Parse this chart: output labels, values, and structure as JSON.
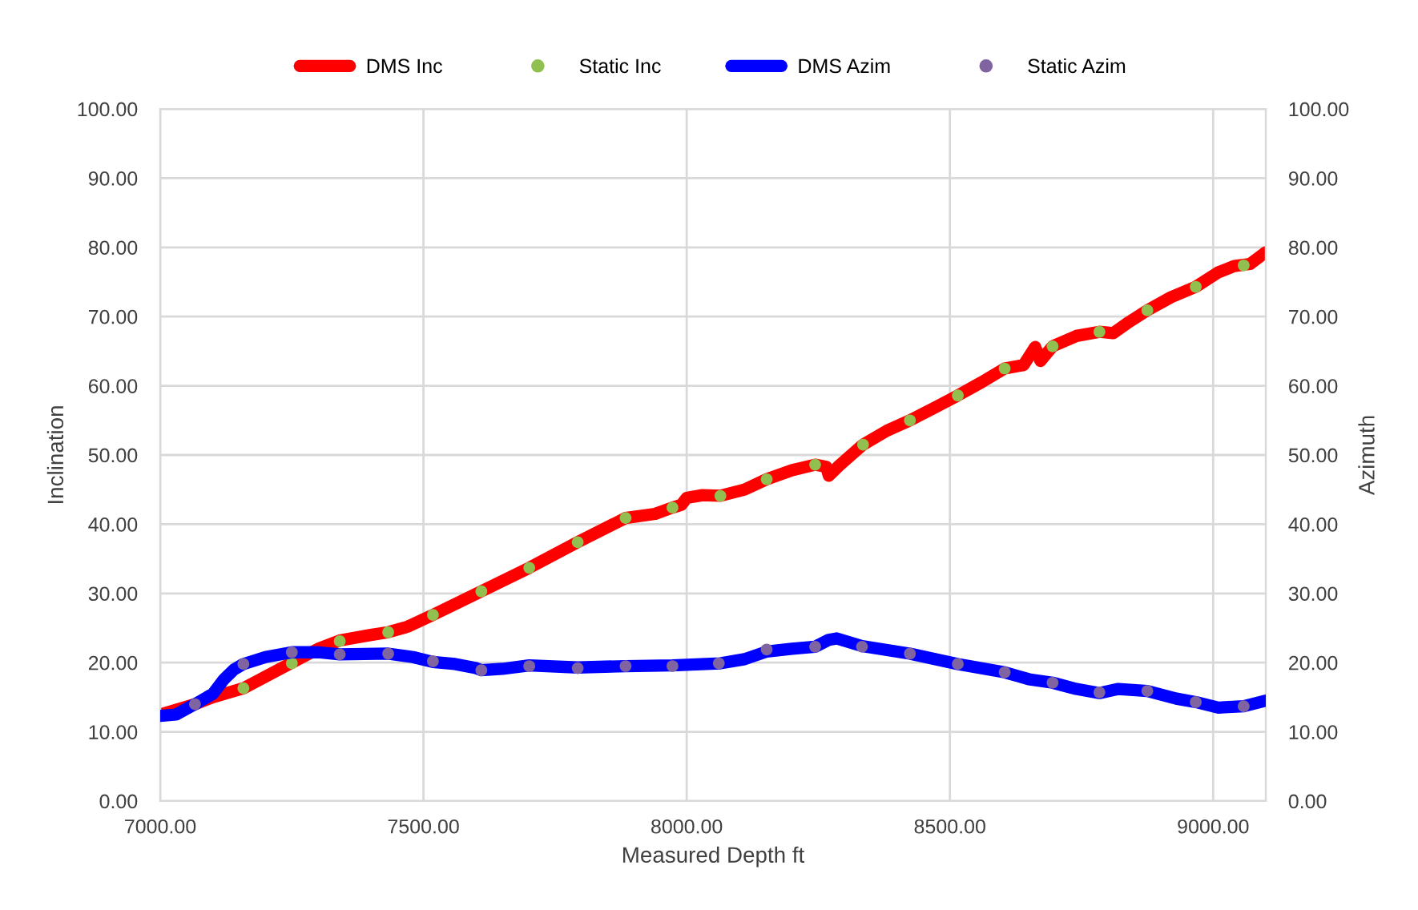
{
  "chart_data": {
    "type": "line",
    "xlabel": "Measured Depth ft",
    "ylabel": "Inclination",
    "y2label": "Azimuth",
    "xlim": [
      7000,
      9100
    ],
    "xticks": [
      {
        "value": 7000,
        "label": "7000.00"
      },
      {
        "value": 7500,
        "label": "7500.00"
      },
      {
        "value": 8000,
        "label": "8000.00"
      },
      {
        "value": 8500,
        "label": "8500.00"
      },
      {
        "value": 9000,
        "label": "9000.00"
      }
    ],
    "ylim": [
      0,
      100
    ],
    "yticks": [
      {
        "value": 0,
        "label": "0.00"
      },
      {
        "value": 10,
        "label": "10.00"
      },
      {
        "value": 20,
        "label": "20.00"
      },
      {
        "value": 30,
        "label": "30.00"
      },
      {
        "value": 40,
        "label": "40.00"
      },
      {
        "value": 50,
        "label": "50.00"
      },
      {
        "value": 60,
        "label": "60.00"
      },
      {
        "value": 70,
        "label": "70.00"
      },
      {
        "value": 80,
        "label": "80.00"
      },
      {
        "value": 90,
        "label": "90.00"
      },
      {
        "value": 100,
        "label": "100.00"
      }
    ],
    "y2lim": [
      0,
      100
    ],
    "y2ticks": [
      {
        "value": 0,
        "label": "0.00"
      },
      {
        "value": 10,
        "label": "10.00"
      },
      {
        "value": 20,
        "label": "20.00"
      },
      {
        "value": 30,
        "label": "30.00"
      },
      {
        "value": 40,
        "label": "40.00"
      },
      {
        "value": 50,
        "label": "50.00"
      },
      {
        "value": 60,
        "label": "60.00"
      },
      {
        "value": 70,
        "label": "70.00"
      },
      {
        "value": 80,
        "label": "80.00"
      },
      {
        "value": 90,
        "label": "90.00"
      },
      {
        "value": 100,
        "label": "100.00"
      }
    ],
    "grid": true,
    "legend": "top",
    "series": [
      {
        "name": "DMS Inc",
        "color": "#ff0000",
        "line_style": "solid",
        "marker": "none",
        "x": [
          7000,
          7066,
          7100,
          7158,
          7250,
          7300,
          7341,
          7400,
          7433,
          7470,
          7518,
          7610,
          7701,
          7793,
          7884,
          7940,
          7973,
          7990,
          8000,
          8030,
          8064,
          8110,
          8152,
          8200,
          8244,
          8265,
          8270,
          8290,
          8335,
          8380,
          8424,
          8470,
          8515,
          8560,
          8604,
          8640,
          8662,
          8672,
          8695,
          8740,
          8784,
          8810,
          8840,
          8875,
          8920,
          8967,
          9010,
          9040,
          9070,
          9100
        ],
        "values": [
          12.5,
          14,
          15,
          16.3,
          20,
          22,
          23.2,
          24,
          24.4,
          25.2,
          26.9,
          30.3,
          33.7,
          37.4,
          40.9,
          41.5,
          42.4,
          42.8,
          43.8,
          44.2,
          44.1,
          45,
          46.5,
          47.8,
          48.6,
          48.3,
          47,
          48.5,
          51.5,
          53.5,
          55,
          56.8,
          58.6,
          60.5,
          62.5,
          63,
          65.6,
          63.6,
          65.7,
          67.2,
          67.8,
          67.6,
          69.2,
          70.9,
          72.8,
          74.3,
          76.4,
          77.3,
          77.6,
          79.3
        ]
      },
      {
        "name": "Static Inc",
        "type": "scatter",
        "color": "#92c050",
        "marker": "circle",
        "x": [
          7158,
          7250,
          7341,
          7433,
          7518,
          7610,
          7701,
          7793,
          7884,
          7973,
          8064,
          8152,
          8244,
          8335,
          8424,
          8515,
          8604,
          8695,
          8784,
          8875,
          8967,
          9058
        ],
        "values": [
          16.3,
          19.9,
          23.1,
          24.4,
          26.9,
          30.3,
          33.7,
          37.4,
          40.9,
          42.4,
          44.1,
          46.5,
          48.6,
          51.5,
          55,
          58.6,
          62.5,
          65.7,
          67.8,
          70.9,
          74.3,
          77.4
        ]
      },
      {
        "name": "DMS Azim",
        "axis": "y2",
        "color": "#0000ff",
        "line_style": "solid",
        "marker": "none",
        "x": [
          7000,
          7030,
          7066,
          7100,
          7120,
          7140,
          7158,
          7200,
          7250,
          7300,
          7341,
          7433,
          7480,
          7518,
          7560,
          7600,
          7610,
          7650,
          7701,
          7793,
          7884,
          7973,
          8064,
          8110,
          8152,
          8200,
          8244,
          8270,
          8285,
          8333,
          8424,
          8515,
          8604,
          8650,
          8695,
          8740,
          8784,
          8820,
          8875,
          8930,
          8967,
          9010,
          9058,
          9100
        ],
        "values": [
          12.3,
          12.5,
          14,
          15.5,
          17.5,
          19,
          19.8,
          20.8,
          21.5,
          21.5,
          21.2,
          21.3,
          20.8,
          20.1,
          19.8,
          19.2,
          18.9,
          19.1,
          19.6,
          19.3,
          19.5,
          19.6,
          19.9,
          20.5,
          21.6,
          22,
          22.3,
          23.3,
          23.5,
          22.4,
          21.3,
          19.8,
          18.6,
          17.6,
          17.1,
          16.2,
          15.6,
          16.2,
          15.9,
          14.8,
          14.3,
          13.5,
          13.7,
          14.5
        ]
      },
      {
        "name": "Static Azim",
        "type": "scatter",
        "axis": "y2",
        "color": "#8064a2",
        "marker": "circle",
        "x": [
          7066,
          7158,
          7250,
          7341,
          7433,
          7518,
          7610,
          7701,
          7793,
          7884,
          7973,
          8061,
          8152,
          8244,
          8333,
          8424,
          8515,
          8604,
          8695,
          8784,
          8875,
          8967,
          9058
        ],
        "values": [
          14,
          19.8,
          21.5,
          21.2,
          21.3,
          20.2,
          18.9,
          19.5,
          19.2,
          19.5,
          19.5,
          19.9,
          21.9,
          22.3,
          22.3,
          21.3,
          19.8,
          18.6,
          17.1,
          15.7,
          15.9,
          14.3,
          13.7
        ]
      }
    ]
  }
}
